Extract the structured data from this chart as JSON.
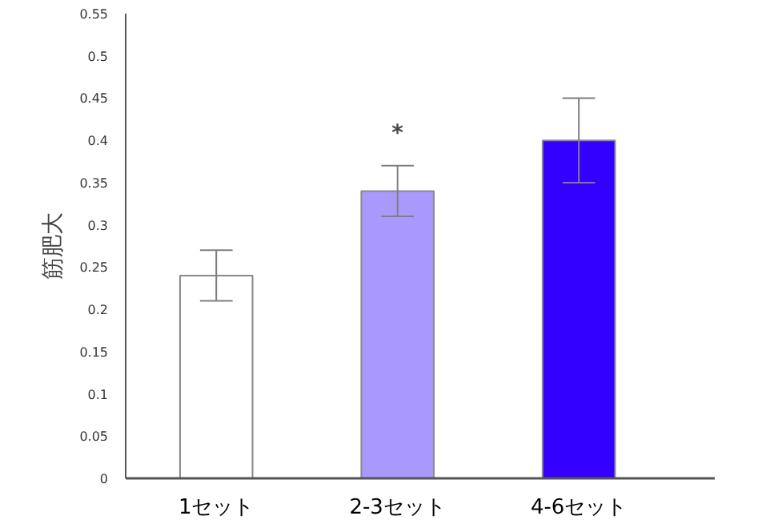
{
  "chart_data": {
    "type": "bar",
    "ylabel": "筋肥大",
    "categories": [
      "1セット",
      "2-3セット",
      "4-6セット"
    ],
    "values": [
      0.24,
      0.34,
      0.4
    ],
    "colors": [
      "#ffffff",
      "#a999fd",
      "#3300ff"
    ],
    "errors": [
      [
        0.21,
        0.27
      ],
      [
        0.31,
        0.37
      ],
      [
        0.35,
        0.45
      ]
    ],
    "annotations": [
      {
        "text": "*",
        "x": "2-3セット",
        "y": 0.37
      }
    ],
    "ylim": [
      0,
      0.55
    ],
    "yticks": [
      0,
      0.05,
      0.1,
      0.15,
      0.2,
      0.25,
      0.3,
      0.35,
      0.4,
      0.45,
      0.5,
      0.55
    ],
    "grid": false
  }
}
